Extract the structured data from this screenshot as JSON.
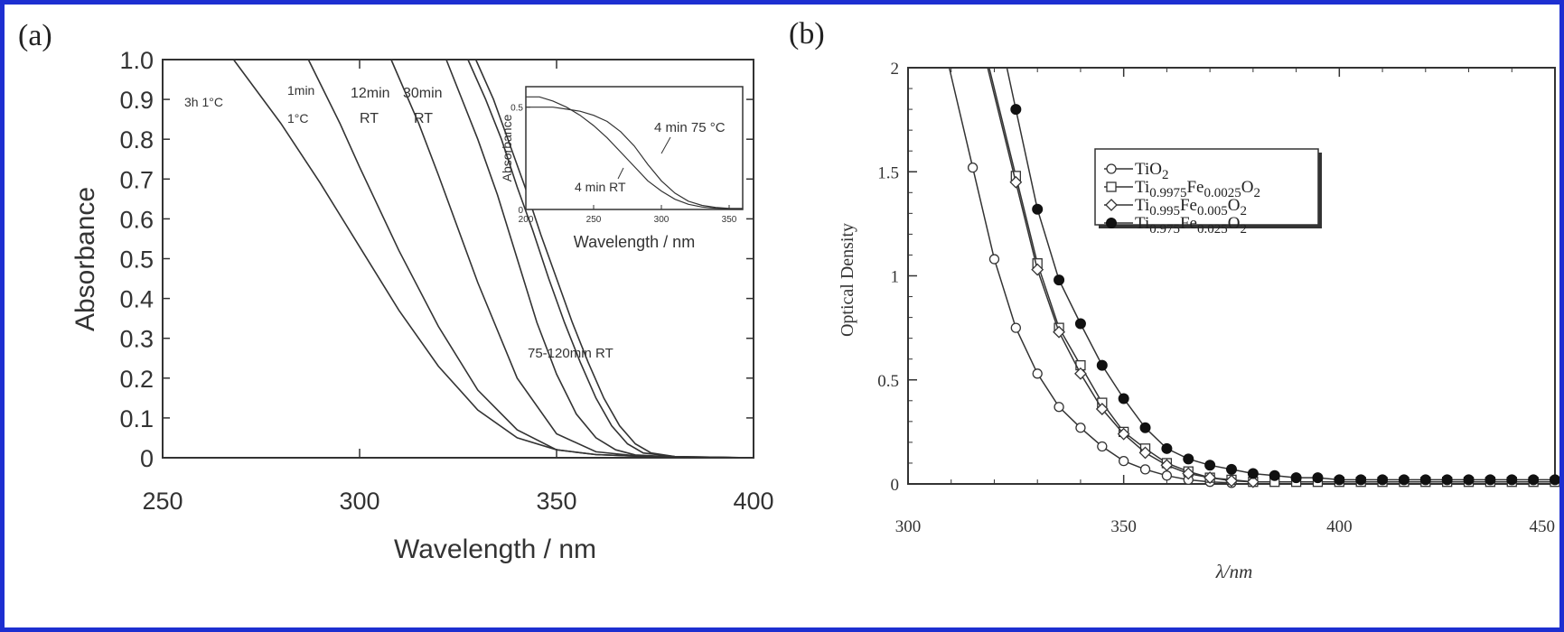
{
  "colors": {
    "frame": "#1d2fd1",
    "ink": "#333333",
    "marker_fill": "#ffffff"
  },
  "panel_a": {
    "tag": "(a)"
  },
  "panel_b": {
    "tag": "(b)"
  },
  "chart_data": [
    {
      "type": "line",
      "panel": "(a)",
      "xlabel": "Wavelength  /  nm",
      "ylabel": "Absorbance",
      "xlim": [
        250,
        400
      ],
      "ylim": [
        0,
        1.0
      ],
      "x_ticks": [
        "250",
        "300",
        "350",
        "400"
      ],
      "y_ticks": [
        "0",
        "0.1",
        "0.2",
        "0.3",
        "0.4",
        "0.5",
        "0.6",
        "0.7",
        "0.8",
        "0.9",
        "1.0"
      ],
      "curve_labels": [
        {
          "text": "3h  1°C"
        },
        {
          "text": "1min"
        },
        {
          "text": "1°C"
        },
        {
          "text": "12min"
        },
        {
          "text": "RT"
        },
        {
          "text": "30min"
        },
        {
          "text": "RT"
        },
        {
          "text": "75-120min  RT"
        }
      ],
      "series": [
        {
          "x": [
            268,
            280,
            290,
            300,
            310,
            320,
            330,
            340,
            350,
            360,
            370,
            380,
            400
          ],
          "y": [
            1.0,
            0.84,
            0.69,
            0.53,
            0.37,
            0.23,
            0.12,
            0.05,
            0.02,
            0.008,
            0.004,
            0.002,
            0.0
          ]
        },
        {
          "x": [
            287,
            295,
            300,
            310,
            320,
            330,
            340,
            350,
            360,
            370,
            380,
            400
          ],
          "y": [
            1.0,
            0.84,
            0.73,
            0.52,
            0.33,
            0.17,
            0.07,
            0.02,
            0.008,
            0.004,
            0.002,
            0.0
          ]
        },
        {
          "x": [
            308,
            315,
            320,
            330,
            340,
            350,
            360,
            370,
            380,
            400
          ],
          "y": [
            1.0,
            0.84,
            0.71,
            0.44,
            0.2,
            0.06,
            0.015,
            0.005,
            0.002,
            0.0
          ]
        },
        {
          "x": [
            322,
            330,
            335,
            340,
            345,
            350,
            355,
            360,
            365,
            370,
            380,
            400
          ],
          "y": [
            1.0,
            0.8,
            0.66,
            0.5,
            0.34,
            0.21,
            0.11,
            0.05,
            0.02,
            0.007,
            0.002,
            0.0
          ]
        },
        {
          "x": [
            327.5,
            332,
            336,
            340,
            344,
            348,
            352,
            356,
            360,
            364,
            368,
            372,
            380,
            400
          ],
          "y": [
            1.0,
            0.9,
            0.8,
            0.68,
            0.57,
            0.45,
            0.34,
            0.24,
            0.15,
            0.08,
            0.035,
            0.012,
            0.003,
            0.0
          ]
        },
        {
          "x": [
            329.5,
            334,
            338,
            342,
            346,
            350,
            354,
            358,
            362,
            366,
            370,
            374,
            380,
            400
          ],
          "y": [
            1.0,
            0.9,
            0.79,
            0.68,
            0.56,
            0.45,
            0.34,
            0.24,
            0.15,
            0.08,
            0.035,
            0.012,
            0.003,
            0.0
          ]
        }
      ],
      "inset": {
        "xlabel": "Wavelength  /  nm",
        "ylabel": "Absorbance",
        "xlim": [
          200,
          360
        ],
        "ylim": [
          0,
          0.6
        ],
        "x_ticks": [
          "200",
          "250",
          "300",
          "350"
        ],
        "y_ticks": [
          "0",
          "0.5"
        ],
        "annotations": [
          {
            "text": "4 min  75 °C"
          },
          {
            "text": "4 min  RT"
          }
        ],
        "series": [
          {
            "x": [
              200,
              210,
              220,
              230,
              240,
              250,
              260,
              270,
              280,
              290,
              300,
              310,
              320,
              330,
              340,
              350,
              360
            ],
            "y": [
              0.5,
              0.5,
              0.5,
              0.49,
              0.48,
              0.46,
              0.43,
              0.38,
              0.31,
              0.22,
              0.14,
              0.08,
              0.04,
              0.02,
              0.01,
              0.005,
              0.005
            ]
          },
          {
            "x": [
              200,
              210,
              220,
              230,
              240,
              250,
              260,
              270,
              280,
              290,
              300,
              310,
              320,
              330,
              340,
              350,
              360
            ],
            "y": [
              0.55,
              0.55,
              0.53,
              0.5,
              0.46,
              0.41,
              0.35,
              0.28,
              0.21,
              0.14,
              0.09,
              0.05,
              0.025,
              0.012,
              0.006,
              0.004,
              0.003
            ]
          }
        ]
      }
    },
    {
      "type": "line",
      "panel": "(b)",
      "xlabel": "λ/nm",
      "ylabel": "Optical Density",
      "xlim": [
        300,
        450
      ],
      "ylim": [
        0,
        2
      ],
      "x_ticks": [
        "300",
        "350",
        "400",
        "450"
      ],
      "y_ticks": [
        "0",
        "0.5",
        "1",
        "1.5",
        "2"
      ],
      "legend_position": "top-right",
      "series": [
        {
          "name": "TiO2",
          "marker": "open-circle",
          "legend_main": "TiO",
          "legend_subs": [
            "2"
          ],
          "legend_segs": [
            "TiO",
            "2"
          ],
          "x": [
            315,
            320,
            325,
            330,
            335,
            340,
            345,
            350,
            355,
            360,
            365,
            370,
            375
          ],
          "y": [
            1.52,
            1.08,
            0.75,
            0.53,
            0.37,
            0.27,
            0.18,
            0.11,
            0.07,
            0.04,
            0.02,
            0.01,
            0.005
          ]
        },
        {
          "name": "Ti0.9975Fe0.0025O2",
          "marker": "open-square",
          "legend_segs": [
            "Ti",
            "0.9975",
            "Fe",
            "0.0025",
            "O",
            "2"
          ],
          "x": [
            325,
            330,
            335,
            340,
            345,
            350,
            355,
            360,
            365,
            370,
            375,
            380,
            385,
            390,
            395,
            400,
            405,
            410,
            415,
            420,
            425,
            430,
            435,
            440,
            445,
            450
          ],
          "y": [
            1.48,
            1.06,
            0.75,
            0.57,
            0.39,
            0.25,
            0.17,
            0.1,
            0.06,
            0.03,
            0.02,
            0.01,
            0.01,
            0.01,
            0.01,
            0.01,
            0.01,
            0.01,
            0.01,
            0.01,
            0.01,
            0.01,
            0.01,
            0.01,
            0.01,
            0.01
          ]
        },
        {
          "name": "Ti0.995Fe0.005O2",
          "marker": "open-diamond",
          "legend_segs": [
            "Ti",
            "0.995",
            "Fe",
            "0.005",
            "O",
            "2"
          ],
          "x": [
            325,
            330,
            335,
            340,
            345,
            350,
            355,
            360,
            365,
            370,
            375,
            380
          ],
          "y": [
            1.45,
            1.03,
            0.73,
            0.53,
            0.36,
            0.24,
            0.15,
            0.09,
            0.05,
            0.03,
            0.015,
            0.01
          ]
        },
        {
          "name": "Ti0.975Fe0.025O2",
          "marker": "filled-circle",
          "legend_segs": [
            "Ti",
            "0.975",
            "Fe",
            "0.025",
            "O",
            "2"
          ],
          "x": [
            325,
            330,
            335,
            340,
            345,
            350,
            355,
            360,
            365,
            370,
            375,
            380,
            385,
            390,
            395,
            400,
            405,
            410,
            415,
            420,
            425,
            430,
            435,
            440,
            445,
            450
          ],
          "y": [
            1.8,
            1.32,
            0.98,
            0.77,
            0.57,
            0.41,
            0.27,
            0.17,
            0.12,
            0.09,
            0.07,
            0.05,
            0.04,
            0.03,
            0.03,
            0.02,
            0.02,
            0.02,
            0.02,
            0.02,
            0.02,
            0.02,
            0.02,
            0.02,
            0.02,
            0.02
          ]
        }
      ]
    }
  ]
}
